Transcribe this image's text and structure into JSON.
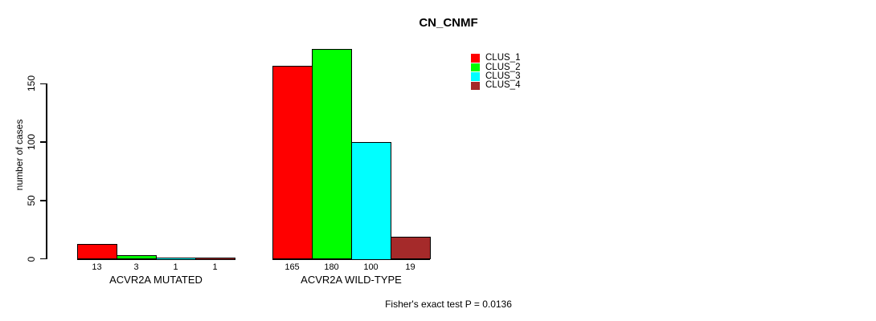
{
  "chart_data": {
    "type": "bar",
    "title": "CN_CNMF",
    "xlabel": "",
    "ylabel": "number of cases",
    "ylim": [
      0,
      185
    ],
    "yticks": [
      0,
      50,
      100,
      150
    ],
    "grid": false,
    "legend_position": "top-right",
    "categories": [
      "ACVR2A MUTATED",
      "ACVR2A WILD-TYPE"
    ],
    "series": [
      {
        "name": "CLUS_1",
        "color": "#FF0000",
        "values": [
          13,
          165
        ]
      },
      {
        "name": "CLUS_2",
        "color": "#00FF00",
        "values": [
          3,
          180
        ]
      },
      {
        "name": "CLUS_3",
        "color": "#00FFFF",
        "values": [
          1,
          100
        ]
      },
      {
        "name": "CLUS_4",
        "color": "#A52A2A",
        "values": [
          1,
          19
        ]
      }
    ],
    "bar_value_labels": [
      [
        "13",
        "3",
        "1",
        "1"
      ],
      [
        "165",
        "180",
        "100",
        "19"
      ]
    ],
    "annotation": "Fisher's exact test P = 0.0136"
  }
}
